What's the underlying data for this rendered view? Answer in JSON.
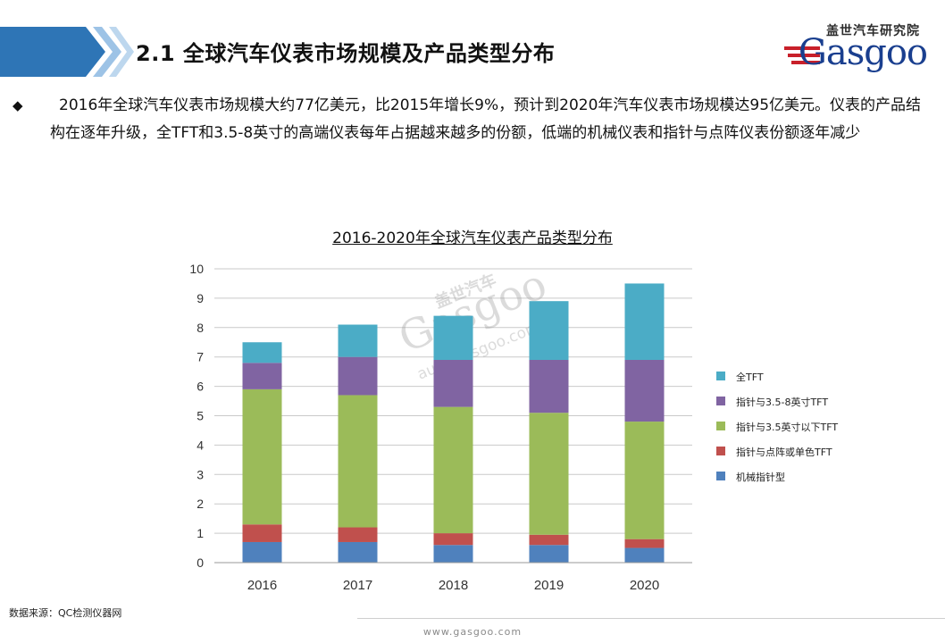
{
  "header": {
    "title": "2.1 全球汽车仪表市场规模及产品类型分布",
    "logo_cn": "盖世汽车研究院",
    "logo_word": "Gasgoo"
  },
  "bullet": {
    "text": "2016年全球汽车仪表市场规模大约77亿美元，比2015年增长9%，预计到2020年汽车仪表市场规模达95亿美元。仪表的产品结构在逐年升级，全TFT和3.5-8英寸的高端仪表每年占据越来越多的份额，低端的机械仪表和指针与点阵仪表份额逐年减少"
  },
  "watermark": {
    "cn": "盖世汽车",
    "word": "Gasgoo",
    "url": "auto.gasgoo.com"
  },
  "chart_data": {
    "type": "bar",
    "stacked": true,
    "title": "2016-2020年全球汽车仪表产品类型分布",
    "categories": [
      "2016",
      "2017",
      "2018",
      "2019",
      "2020"
    ],
    "ylim": [
      0,
      10
    ],
    "yticks": [
      0,
      1,
      2,
      3,
      4,
      5,
      6,
      7,
      8,
      9,
      10
    ],
    "grid": true,
    "legend_position": "right",
    "series": [
      {
        "name": "机械指针型",
        "color": "#4f81bd",
        "values": [
          0.7,
          0.7,
          0.6,
          0.6,
          0.5
        ]
      },
      {
        "name": "指针与点阵或单色TFT",
        "color": "#c0504d",
        "values": [
          0.6,
          0.5,
          0.4,
          0.35,
          0.3
        ]
      },
      {
        "name": "指针与3.5英寸以下TFT",
        "color": "#9bbb59",
        "values": [
          4.6,
          4.5,
          4.3,
          4.15,
          4.0
        ]
      },
      {
        "name": "指针与3.5-8英寸TFT",
        "color": "#8064a2",
        "values": [
          0.9,
          1.3,
          1.6,
          1.8,
          2.1
        ]
      },
      {
        "name": "全TFT",
        "color": "#4bacc6",
        "values": [
          0.7,
          1.1,
          1.5,
          2.0,
          2.6
        ]
      }
    ]
  },
  "footer": {
    "source": "数据来源：QC检测仪器网",
    "url": "www.gasgoo.com"
  }
}
